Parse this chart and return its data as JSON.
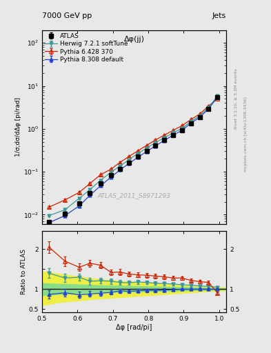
{
  "title_left": "7000 GeV pp",
  "title_right": "Jets",
  "right_label_top": "Rivet 3.1.10, ≥ 3.2M events",
  "right_label_bot": "mcplots.cern.ch [arXiv:1306.3436]",
  "annotation": "ATLAS_2011_S8971293",
  "plot_title": "Δφ(jj)",
  "ylabel_main": "1/σ;dσ/dΔφ [pi/rad]",
  "ylabel_ratio": "Ratio to ATLAS",
  "xlabel": "Δφ [rad/pi]",
  "xlim": [
    0.5,
    1.02
  ],
  "ylim_main": [
    0.006,
    200
  ],
  "ylim_ratio": [
    0.42,
    2.45
  ],
  "x_data": [
    0.52,
    0.565,
    0.605,
    0.635,
    0.665,
    0.695,
    0.72,
    0.745,
    0.77,
    0.795,
    0.82,
    0.845,
    0.87,
    0.895,
    0.92,
    0.945,
    0.97,
    0.995
  ],
  "atlas_y": [
    0.0067,
    0.0105,
    0.0185,
    0.032,
    0.053,
    0.082,
    0.115,
    0.165,
    0.225,
    0.305,
    0.415,
    0.545,
    0.72,
    0.92,
    1.35,
    1.85,
    2.9,
    5.5
  ],
  "atlas_yerr": [
    0.0005,
    0.0008,
    0.0012,
    0.002,
    0.003,
    0.005,
    0.007,
    0.009,
    0.012,
    0.016,
    0.02,
    0.027,
    0.035,
    0.045,
    0.065,
    0.09,
    0.14,
    0.25
  ],
  "herwig_y": [
    0.0095,
    0.013,
    0.024,
    0.038,
    0.063,
    0.098,
    0.135,
    0.19,
    0.265,
    0.355,
    0.475,
    0.62,
    0.81,
    1.02,
    1.48,
    2.0,
    3.1,
    5.8
  ],
  "herwig_yerr": [
    0.0005,
    0.001,
    0.0015,
    0.002,
    0.003,
    0.005,
    0.006,
    0.008,
    0.011,
    0.014,
    0.018,
    0.023,
    0.03,
    0.038,
    0.055,
    0.075,
    0.12,
    0.22
  ],
  "pythia6_y": [
    0.015,
    0.022,
    0.033,
    0.053,
    0.085,
    0.115,
    0.165,
    0.225,
    0.305,
    0.41,
    0.55,
    0.71,
    0.92,
    1.18,
    1.65,
    2.2,
    3.4,
    5.0
  ],
  "pythia6_yerr": [
    0.001,
    0.0015,
    0.002,
    0.003,
    0.004,
    0.006,
    0.008,
    0.011,
    0.014,
    0.018,
    0.022,
    0.028,
    0.036,
    0.046,
    0.065,
    0.088,
    0.135,
    0.2
  ],
  "pythia8_y": [
    0.0065,
    0.0095,
    0.016,
    0.028,
    0.047,
    0.075,
    0.11,
    0.155,
    0.215,
    0.295,
    0.4,
    0.535,
    0.71,
    0.92,
    1.35,
    1.85,
    2.9,
    5.5
  ],
  "pythia8_yerr": [
    0.0005,
    0.0007,
    0.001,
    0.0015,
    0.003,
    0.004,
    0.006,
    0.008,
    0.011,
    0.014,
    0.018,
    0.023,
    0.03,
    0.038,
    0.055,
    0.075,
    0.12,
    0.22
  ],
  "herwig_ratio": [
    1.4,
    1.28,
    1.3,
    1.2,
    1.21,
    1.2,
    1.17,
    1.16,
    1.18,
    1.17,
    1.15,
    1.14,
    1.13,
    1.11,
    1.1,
    1.08,
    1.07,
    1.05
  ],
  "herwig_ratio_err": [
    0.12,
    0.1,
    0.09,
    0.08,
    0.07,
    0.065,
    0.06,
    0.055,
    0.05,
    0.048,
    0.045,
    0.042,
    0.04,
    0.038,
    0.036,
    0.034,
    0.032,
    0.03
  ],
  "pythia6_ratio": [
    2.05,
    1.7,
    1.55,
    1.65,
    1.6,
    1.42,
    1.43,
    1.38,
    1.36,
    1.35,
    1.33,
    1.31,
    1.28,
    1.28,
    1.22,
    1.19,
    1.17,
    0.91
  ],
  "pythia6_ratio_err": [
    0.15,
    0.12,
    0.1,
    0.09,
    0.08,
    0.075,
    0.07,
    0.065,
    0.062,
    0.058,
    0.055,
    0.052,
    0.048,
    0.046,
    0.044,
    0.042,
    0.038,
    0.035
  ],
  "pythia8_ratio": [
    0.87,
    0.91,
    0.86,
    0.88,
    0.9,
    0.92,
    0.96,
    0.95,
    0.96,
    0.97,
    0.97,
    0.98,
    0.99,
    1.0,
    1.0,
    1.0,
    1.0,
    1.0
  ],
  "pythia8_ratio_err": [
    0.1,
    0.09,
    0.08,
    0.07,
    0.06,
    0.055,
    0.05,
    0.048,
    0.045,
    0.042,
    0.04,
    0.038,
    0.035,
    0.032,
    0.03,
    0.028,
    0.026,
    0.024
  ],
  "band_x": [
    0.5,
    0.55,
    0.6,
    0.65,
    0.7,
    0.75,
    0.8,
    0.85,
    0.9,
    0.95,
    1.02
  ],
  "band_green_low": [
    0.85,
    0.88,
    0.9,
    0.92,
    0.93,
    0.94,
    0.95,
    0.96,
    0.97,
    0.98,
    0.99
  ],
  "band_green_high": [
    1.15,
    1.13,
    1.12,
    1.1,
    1.09,
    1.08,
    1.07,
    1.06,
    1.05,
    1.04,
    1.02
  ],
  "band_yellow_low": [
    0.6,
    0.68,
    0.72,
    0.76,
    0.79,
    0.82,
    0.85,
    0.88,
    0.91,
    0.94,
    0.97
  ],
  "band_yellow_high": [
    1.45,
    1.38,
    1.32,
    1.26,
    1.22,
    1.19,
    1.16,
    1.13,
    1.1,
    1.07,
    1.04
  ],
  "atlas_color": "#000000",
  "herwig_color": "#3d9999",
  "pythia6_color": "#cc2200",
  "pythia8_color": "#2244cc",
  "green_band_color": "#88dd88",
  "yellow_band_color": "#eeee44",
  "bg_color": "#e8e8e8"
}
